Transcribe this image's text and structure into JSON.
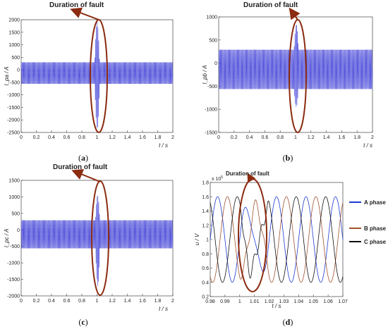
{
  "chart_data": [
    {
      "id": "a",
      "type": "line",
      "panel_label_open": "(",
      "panel_label_letter": "a",
      "panel_label_close": ")",
      "annotation": "Duration of fault",
      "ylabel": "I_pa / A",
      "xlabel": "t / s",
      "xlim": [
        0,
        2
      ],
      "ylim": [
        -2500,
        2000
      ],
      "xticks": [
        "0",
        "0.2",
        "0.4",
        "0.6",
        "0.8",
        "1",
        "1.2",
        "1.4",
        "1.6",
        "1.8",
        "2"
      ],
      "yticks": [
        "2000",
        "1500",
        "1000",
        "500",
        "0",
        "-500",
        "-1000",
        "-1500",
        "-2000",
        "-2500"
      ],
      "series": [
        {
          "normal_max": 300,
          "normal_min": -560,
          "fault_start": 0.97,
          "fault_end": 1.06,
          "fault_max": 1900,
          "fault_min": -2350,
          "cycles": 100
        }
      ],
      "colors": {
        "trace": "#3b3bd6",
        "annotation": "#8b2b10"
      }
    },
    {
      "id": "b",
      "type": "line",
      "panel_label_open": "(",
      "panel_label_letter": "b",
      "panel_label_close": ")",
      "annotation": "Duration of fault",
      "ylabel": "I_pb / A",
      "xlabel": "t / s",
      "xlim": [
        0,
        2
      ],
      "ylim": [
        -1500,
        1000
      ],
      "xticks": [
        "0",
        "0.2",
        "0.4",
        "0.6",
        "0.8",
        "1",
        "1.2",
        "1.4",
        "1.6",
        "1.8",
        "2"
      ],
      "yticks": [
        "1000",
        "500",
        "0",
        "-500",
        "-1000",
        "-1500"
      ],
      "series": [
        {
          "normal_max": 290,
          "normal_min": -560,
          "fault_start": 0.98,
          "fault_end": 1.06,
          "fault_max": 840,
          "fault_min": -950,
          "cycles": 100
        }
      ],
      "colors": {
        "trace": "#3b3bd6",
        "annotation": "#8b2b10"
      }
    },
    {
      "id": "c",
      "type": "line",
      "panel_label_open": "(",
      "panel_label_letter": "c",
      "panel_label_close": ")",
      "annotation": "Duration of fault",
      "ylabel": "I_pc / A",
      "xlabel": "t / s",
      "xlim": [
        0,
        2
      ],
      "ylim": [
        -2000,
        1500
      ],
      "xticks": [
        "0",
        "0.2",
        "0.4",
        "0.6",
        "0.8",
        "1",
        "1.2",
        "1.4",
        "1.6",
        "1.8",
        "2"
      ],
      "yticks": [
        "1500",
        "1000",
        "500",
        "0",
        "-500",
        "-1000",
        "-1500",
        "-2000"
      ],
      "series": [
        {
          "normal_max": 290,
          "normal_min": -560,
          "fault_start": 0.98,
          "fault_end": 1.06,
          "fault_max": 1050,
          "fault_min": -1700,
          "cycles": 100
        }
      ],
      "colors": {
        "trace": "#3b3bd6",
        "annotation": "#8b2b10"
      }
    },
    {
      "id": "d",
      "type": "line",
      "panel_label_open": "(",
      "panel_label_letter": "d",
      "panel_label_close": ")",
      "annotation": "Duration of fault",
      "ylabel": "u / V",
      "xlabel": "t / s",
      "exponent": "x 10",
      "exponent_power": "5",
      "xlim": [
        0.98,
        1.07
      ],
      "ylim": [
        0.2,
        1.8
      ],
      "xticks": [
        "0.98",
        "0.99",
        "1",
        "1.01",
        "1.02",
        "1.03",
        "1.04",
        "1.05",
        "1.06",
        "1.07"
      ],
      "yticks": [
        "1.8",
        "1.6",
        "1.4",
        "1.2",
        "1",
        "0.8",
        "0.6",
        "0.4",
        "0.2"
      ],
      "legend": [
        "A phase",
        "B phase",
        "C phase"
      ],
      "series": [
        {
          "name": "A phase",
          "color": "#1f3ad0",
          "offset": 1.0,
          "amplitude": 0.6,
          "phase_deg": 0
        },
        {
          "name": "B phase",
          "color": "#a0522d",
          "offset": 1.0,
          "amplitude": 0.6,
          "phase_deg": -120
        },
        {
          "name": "C phase",
          "color": "#111111",
          "offset": 1.0,
          "amplitude": 0.6,
          "phase_deg": 120
        }
      ],
      "fault_window": [
        1.0,
        1.02
      ],
      "frequency_hz": 50
    }
  ]
}
